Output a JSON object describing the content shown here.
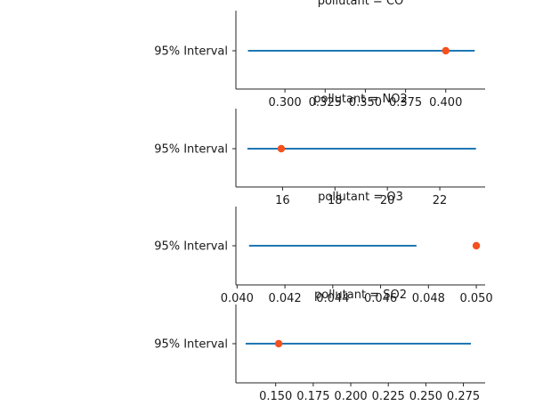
{
  "chart_data": [
    {
      "type": "interval",
      "title": "pollutant = CO",
      "ylabel": "95% Interval",
      "xlim": [
        0.2695,
        0.4245
      ],
      "ticks": [
        0.3,
        0.325,
        0.35,
        0.375,
        0.4
      ],
      "tick_labels": [
        "0.300",
        "0.325",
        "0.350",
        "0.375",
        "0.400"
      ],
      "interval": [
        0.277,
        0.418
      ],
      "point": 0.4
    },
    {
      "type": "interval",
      "title": "pollutant = NO2",
      "ylabel": "95% Interval",
      "xlim": [
        14.22,
        23.73
      ],
      "ticks": [
        16,
        18,
        20,
        22
      ],
      "tick_labels": [
        "16",
        "18",
        "20",
        "22"
      ],
      "interval": [
        14.66,
        23.38
      ],
      "point": 15.95
    },
    {
      "type": "interval",
      "title": "pollutant = O3",
      "ylabel": "95% Interval",
      "xlim": [
        0.03995,
        0.05037
      ],
      "ticks": [
        0.04,
        0.042,
        0.044,
        0.046,
        0.048,
        0.05
      ],
      "tick_labels": [
        "0.040",
        "0.042",
        "0.044",
        "0.046",
        "0.048",
        "0.050"
      ],
      "interval": [
        0.0405,
        0.0475
      ],
      "point": 0.05
    },
    {
      "type": "interval",
      "title": "pollutant = SO2",
      "ylabel": "95% Interval",
      "xlim": [
        0.1235,
        0.2895
      ],
      "ticks": [
        0.15,
        0.175,
        0.2,
        0.225,
        0.25,
        0.275
      ],
      "tick_labels": [
        "0.150",
        "0.175",
        "0.200",
        "0.225",
        "0.250",
        "0.275"
      ],
      "interval": [
        0.13,
        0.28
      ],
      "point": 0.152
    }
  ],
  "colors": {
    "interval": "#1f77b4",
    "point": "#f4511e",
    "axis": "#262626"
  }
}
